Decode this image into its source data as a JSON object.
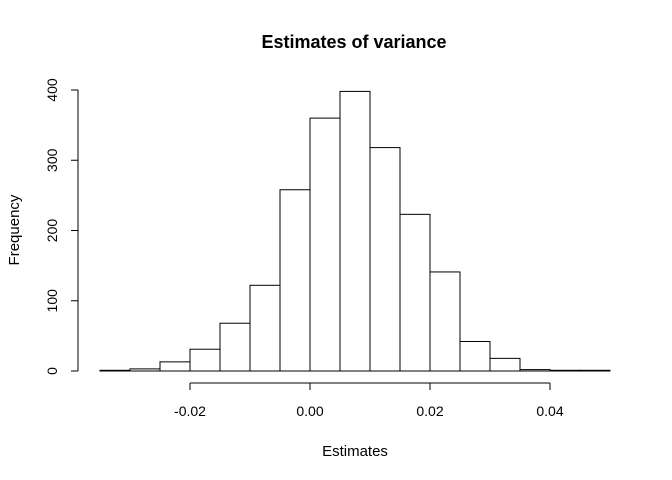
{
  "chart_data": {
    "type": "bar",
    "title": "Estimates of variance",
    "xlabel": "Estimates",
    "ylabel": "Frequency",
    "bin_width": 0.005,
    "bins": [
      {
        "x0": -0.035,
        "x1": -0.03,
        "count": 1
      },
      {
        "x0": -0.03,
        "x1": -0.025,
        "count": 3
      },
      {
        "x0": -0.025,
        "x1": -0.02,
        "count": 13
      },
      {
        "x0": -0.02,
        "x1": -0.015,
        "count": 31
      },
      {
        "x0": -0.015,
        "x1": -0.01,
        "count": 68
      },
      {
        "x0": -0.01,
        "x1": -0.005,
        "count": 122
      },
      {
        "x0": -0.005,
        "x1": 0.0,
        "count": 258
      },
      {
        "x0": 0.0,
        "x1": 0.005,
        "count": 360
      },
      {
        "x0": 0.005,
        "x1": 0.01,
        "count": 398
      },
      {
        "x0": 0.01,
        "x1": 0.015,
        "count": 318
      },
      {
        "x0": 0.015,
        "x1": 0.02,
        "count": 223
      },
      {
        "x0": 0.02,
        "x1": 0.025,
        "count": 141
      },
      {
        "x0": 0.025,
        "x1": 0.03,
        "count": 42
      },
      {
        "x0": 0.03,
        "x1": 0.035,
        "count": 18
      },
      {
        "x0": 0.035,
        "x1": 0.04,
        "count": 2
      },
      {
        "x0": 0.04,
        "x1": 0.045,
        "count": 1
      },
      {
        "x0": 0.045,
        "x1": 0.05,
        "count": 1
      }
    ],
    "xticks": [
      -0.02,
      0.0,
      0.02,
      0.04
    ],
    "xtick_labels": [
      "-0.02",
      "0.00",
      "0.02",
      "0.04"
    ],
    "yticks": [
      0,
      100,
      200,
      300,
      400
    ],
    "ytick_labels": [
      "0",
      "100",
      "200",
      "300",
      "400"
    ],
    "xlim": [
      -0.035,
      0.05
    ],
    "ylim": [
      0,
      400
    ],
    "grid": false,
    "legend": "none"
  }
}
